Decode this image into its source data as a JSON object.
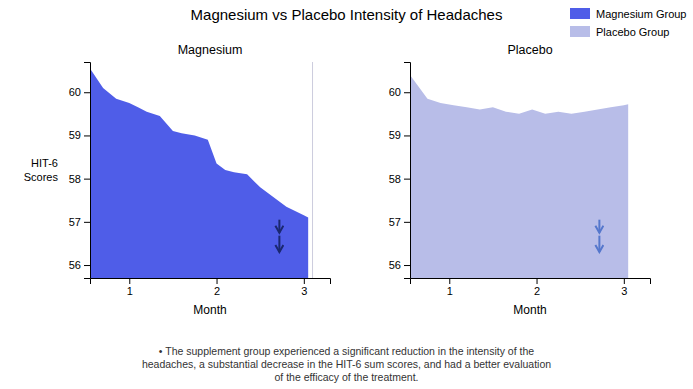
{
  "title": "Magnesium vs Placebo Intensity of Headaches",
  "subtitle": "•  The supplement group experienced a significant reduction in the intensity of the\nheadaches, a substantial decrease in the HIT-6 sum scores, and had a better evaluation\nof the efficacy of the treatment.",
  "chart_data": [
    {
      "type": "area",
      "title": "Magnesium",
      "xlabel": "Month",
      "ylabel": "HIT-6\nScores",
      "xlim": [
        0.55,
        3.3
      ],
      "xticks": [
        1,
        2,
        3
      ],
      "ylim": [
        55.7,
        60.7
      ],
      "yticks": [
        56,
        57,
        58,
        59,
        60
      ],
      "baseline": 55.7,
      "series": [
        {
          "name": "Magnesium Group",
          "color": "#4f5de8",
          "x": [
            0.55,
            0.7,
            0.85,
            1.0,
            1.1,
            1.2,
            1.35,
            1.5,
            1.6,
            1.75,
            1.9,
            2.0,
            2.1,
            2.2,
            2.35,
            2.5,
            2.6,
            2.7,
            2.8,
            2.9,
            3.0,
            3.05
          ],
          "values": [
            60.55,
            60.1,
            59.85,
            59.75,
            59.65,
            59.55,
            59.45,
            59.1,
            59.05,
            59.0,
            58.9,
            58.35,
            58.2,
            58.15,
            58.1,
            57.8,
            57.65,
            57.5,
            57.35,
            57.25,
            57.15,
            57.1
          ]
        }
      ],
      "vline": {
        "x": 3.1,
        "color": "#ccccdd"
      },
      "arrows": [
        {
          "x": 2.72,
          "from": 57.05,
          "to": 56.75,
          "color": "#1a2870"
        },
        {
          "x": 2.72,
          "from": 56.68,
          "to": 56.3,
          "color": "#1a2870"
        }
      ]
    },
    {
      "type": "area",
      "title": "Placebo",
      "xlabel": "Month",
      "xlim": [
        0.55,
        3.3
      ],
      "xticks": [
        1,
        2,
        3
      ],
      "ylim": [
        55.7,
        60.7
      ],
      "yticks": [
        56,
        57,
        58,
        59,
        60
      ],
      "baseline": 55.7,
      "series": [
        {
          "name": "Placebo Group",
          "color": "#b8bde8",
          "x": [
            0.55,
            0.75,
            0.9,
            1.05,
            1.2,
            1.35,
            1.5,
            1.65,
            1.8,
            1.95,
            2.1,
            2.25,
            2.4,
            2.55,
            2.7,
            2.85,
            3.0,
            3.05
          ],
          "values": [
            60.4,
            59.85,
            59.75,
            59.7,
            59.65,
            59.6,
            59.65,
            59.55,
            59.5,
            59.6,
            59.5,
            59.55,
            59.5,
            59.55,
            59.6,
            59.65,
            59.7,
            59.72
          ]
        }
      ],
      "arrows": [
        {
          "x": 2.72,
          "from": 57.05,
          "to": 56.75,
          "color": "#5577cc"
        },
        {
          "x": 2.72,
          "from": 56.68,
          "to": 56.3,
          "color": "#5577cc"
        }
      ],
      "legend": "upper right"
    }
  ]
}
